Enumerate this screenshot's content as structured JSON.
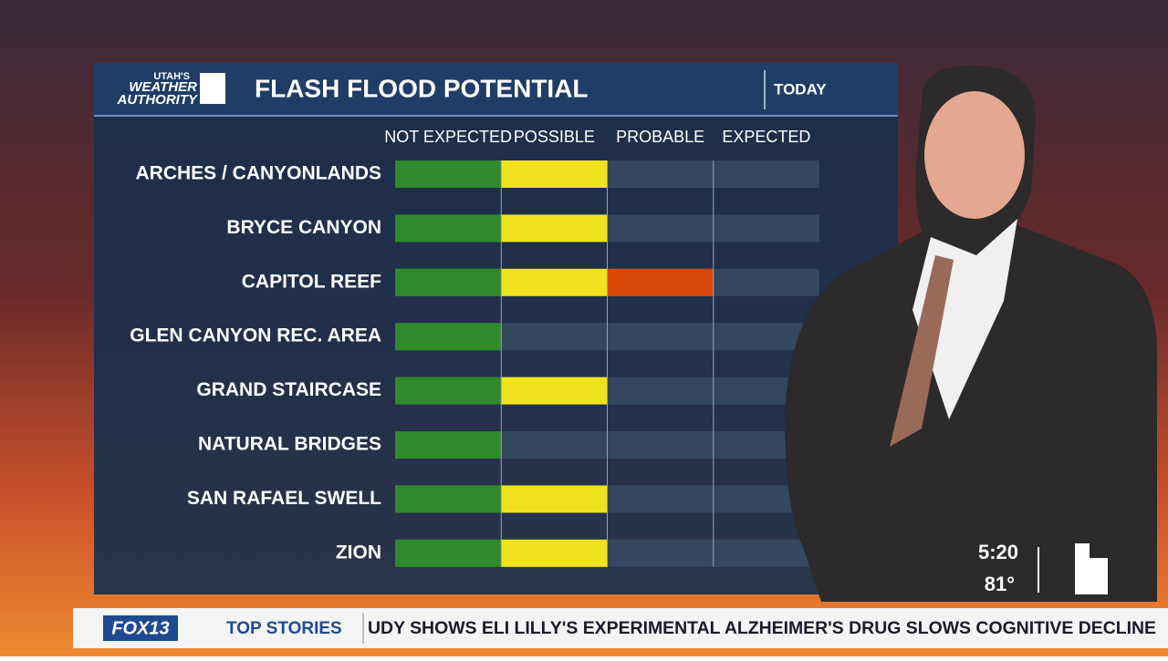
{
  "chart_data": {
    "type": "bar",
    "title": "FLASH FLOOD POTENTIAL",
    "subtitle": "TODAY",
    "categories": [
      "ARCHES / CANYONLANDS",
      "BRYCE CANYON",
      "CAPITOL REEF",
      "GLEN CANYON REC. AREA",
      "GRAND STAIRCASE",
      "NATURAL BRIDGES",
      "SAN RAFAEL SWELL",
      "ZION"
    ],
    "values": [
      2,
      2,
      3,
      1,
      2,
      1,
      2,
      2
    ],
    "xlim": [
      0,
      4
    ],
    "xticks": [
      {
        "value": 0.5,
        "label": "NOT EXPECTED"
      },
      {
        "value": 1.5,
        "label": "POSSIBLE"
      },
      {
        "value": 2.5,
        "label": "PROBABLE"
      },
      {
        "value": 3.5,
        "label": "EXPECTED"
      }
    ],
    "level_colors": [
      "#2e8a2a",
      "#f0e21c",
      "#d8470a",
      "#b01010"
    ]
  },
  "broadcast": {
    "logo_lines": [
      "UTAH'S",
      "WEATHER",
      "AUTHORITY"
    ],
    "station": "FOX13",
    "time": "5:20",
    "temperature": "81°",
    "ticker_label": "TOP STORIES",
    "headline": "UDY SHOWS ELI LILLY'S EXPERIMENTAL ALZHEIMER'S DRUG SLOWS COGNITIVE DECLINE"
  }
}
